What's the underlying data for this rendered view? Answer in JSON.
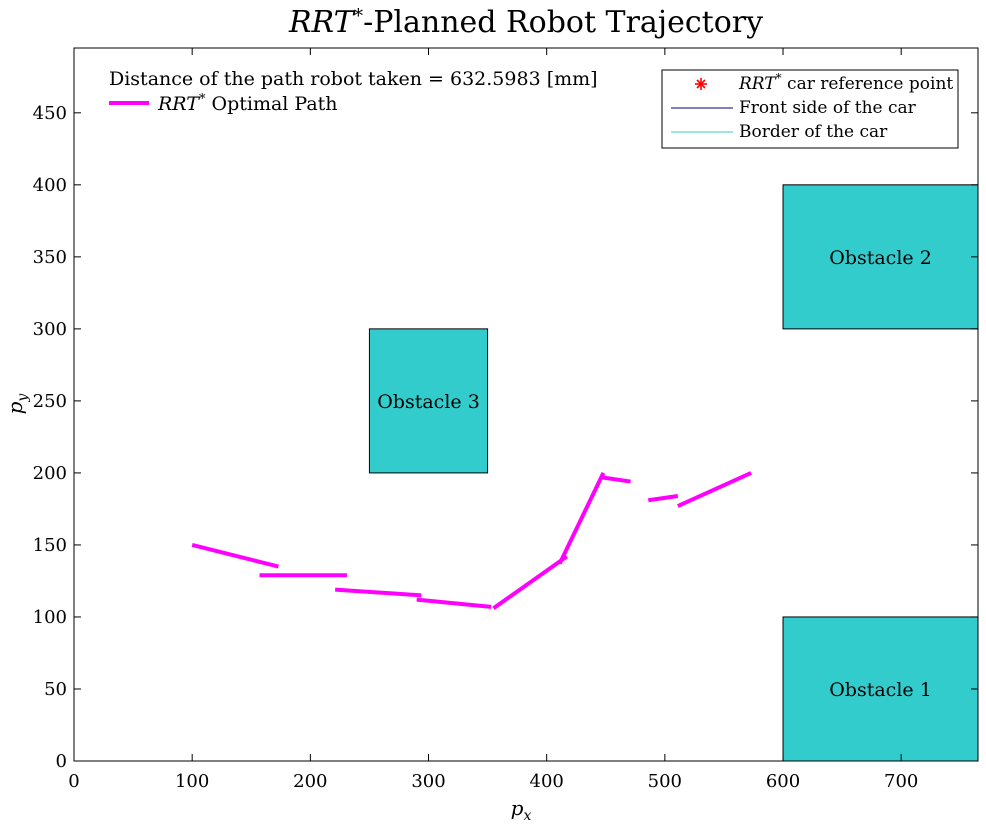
{
  "chart_data": {
    "type": "line",
    "title": "RRT*-Planned Robot Trajectory",
    "title_parts": [
      "RRT",
      "*",
      "-Planned Robot Trajectory"
    ],
    "xlabel": "p",
    "xlabel_sub": "x",
    "ylabel": "p",
    "ylabel_sub": "y",
    "xlim": [
      0,
      765
    ],
    "ylim": [
      0,
      495
    ],
    "xticks": [
      0,
      100,
      200,
      300,
      400,
      500,
      600,
      700
    ],
    "yticks": [
      0,
      50,
      100,
      150,
      200,
      250,
      300,
      350,
      400,
      450
    ],
    "grid": false,
    "annotation": "Distance of the path robot taken = 632.5983 [mm]",
    "path_legend": {
      "label_italic": "RRT",
      "label_sup": "*",
      "label_rest": " Optimal Path",
      "color": "#ff00ff"
    },
    "legend": {
      "placement": "top-right",
      "entries": [
        {
          "italic": "RRT",
          "sup": "*",
          "rest": " car reference point",
          "marker": "asterisk",
          "color": "#ff0000"
        },
        {
          "italic": "",
          "sup": "",
          "rest": "Front side of the car",
          "marker": "line",
          "color": "#000080"
        },
        {
          "italic": "",
          "sup": "",
          "rest": "Border of the car",
          "marker": "line",
          "color": "#33cccc"
        }
      ]
    },
    "obstacles": [
      {
        "label": "Obstacle 1",
        "x": [
          600,
          765
        ],
        "y": [
          0,
          100
        ],
        "color": "#33cccc"
      },
      {
        "label": "Obstacle 2",
        "x": [
          600,
          765
        ],
        "y": [
          300,
          400
        ],
        "color": "#33cccc"
      },
      {
        "label": "Obstacle 3",
        "x": [
          250,
          350
        ],
        "y": [
          200,
          300
        ],
        "color": "#33cccc"
      }
    ],
    "series": [
      {
        "color": "#ff00ff",
        "segments": [
          [
            [
              100,
              150
            ],
            [
              173,
              135
            ]
          ],
          [
            [
              157,
              129
            ],
            [
              231,
              129
            ]
          ],
          [
            [
              221,
              119
            ],
            [
              294,
              115
            ]
          ],
          [
            [
              290,
              112
            ],
            [
              353,
              107
            ]
          ],
          [
            [
              355,
              106
            ],
            [
              417,
              142
            ]
          ],
          [
            [
              411,
              137
            ],
            [
              448,
              200
            ]
          ],
          [
            [
              446,
              197
            ],
            [
              471,
              194
            ]
          ],
          [
            [
              486,
              181
            ],
            [
              511,
              184
            ]
          ],
          [
            [
              511,
              177
            ],
            [
              573,
              200
            ]
          ]
        ]
      }
    ]
  }
}
